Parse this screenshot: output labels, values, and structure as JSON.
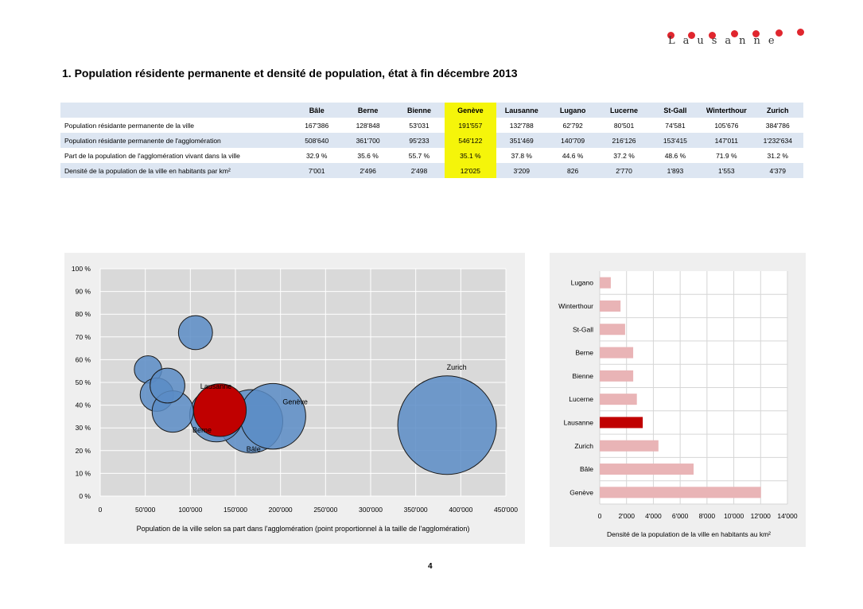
{
  "logo": {
    "text": "Lausanne"
  },
  "title": "1. Population résidente permanente et densité de population, état à fin décembre 2013",
  "table": {
    "columns": [
      "Bâle",
      "Berne",
      "Bienne",
      "Genève",
      "Lausanne",
      "Lugano",
      "Lucerne",
      "St-Gall",
      "Winterthour",
      "Zurich"
    ],
    "highlight_column": "Genève",
    "rows": [
      {
        "label": "Population résidante permanente de la ville",
        "values": [
          "167'386",
          "128'848",
          "53'031",
          "191'557",
          "132'788",
          "62'792",
          "80'501",
          "74'581",
          "105'676",
          "384'786"
        ]
      },
      {
        "label": "Population résidante permanente de l'agglomération",
        "values": [
          "508'640",
          "361'700",
          "95'233",
          "546'122",
          "351'469",
          "140'709",
          "216'126",
          "153'415",
          "147'011",
          "1'232'634"
        ]
      },
      {
        "label": "Part de la population de l'agglomération vivant dans la ville",
        "values": [
          "32.9 %",
          "35.6 %",
          "55.7 %",
          "35.1 %",
          "37.8 %",
          "44.6 %",
          "37.2 %",
          "48.6 %",
          "71.9 %",
          "31.2 %"
        ]
      },
      {
        "label": "Densité de la population de la ville en habitants par km²",
        "values": [
          "7'001",
          "2'496",
          "2'498",
          "12'025",
          "3'209",
          "826",
          "2'770",
          "1'893",
          "1'553",
          "4'379"
        ]
      }
    ]
  },
  "chart_data": [
    {
      "type": "scatter",
      "subtype": "bubble",
      "xlabel": "Population de la ville selon sa part dans l'agglomération (point proportionnel à la taille de l'agglomération)",
      "ylabel": "",
      "xlim": [
        0,
        450000
      ],
      "ylim": [
        0,
        100
      ],
      "x_ticks": [
        "0",
        "50'000",
        "100'000",
        "150'000",
        "200'000",
        "250'000",
        "300'000",
        "350'000",
        "400'000",
        "450'000"
      ],
      "y_ticks": [
        "0 %",
        "10 %",
        "20 %",
        "30 %",
        "40 %",
        "50 %",
        "60 %",
        "70 %",
        "80 %",
        "90 %",
        "100 %"
      ],
      "grid": true,
      "colors": {
        "default": "#5b8cc6",
        "highlight": "#c00000",
        "border": "#1a1a1a"
      },
      "points": [
        {
          "label": "Bâle",
          "x": 167386,
          "y": 32.9,
          "size": 508640,
          "highlight": false
        },
        {
          "label": "Berne",
          "x": 128848,
          "y": 35.6,
          "size": 361700,
          "highlight": false
        },
        {
          "label": "",
          "x": 53031,
          "y": 55.7,
          "size": 95233,
          "highlight": false
        },
        {
          "label": "Genève",
          "x": 191557,
          "y": 35.1,
          "size": 546122,
          "highlight": false
        },
        {
          "label": "Lausanne",
          "x": 132788,
          "y": 37.8,
          "size": 351469,
          "highlight": true
        },
        {
          "label": "",
          "x": 62792,
          "y": 44.6,
          "size": 140709,
          "highlight": false
        },
        {
          "label": "",
          "x": 80501,
          "y": 37.2,
          "size": 216126,
          "highlight": false
        },
        {
          "label": "",
          "x": 74581,
          "y": 48.6,
          "size": 153415,
          "highlight": false
        },
        {
          "label": "",
          "x": 105676,
          "y": 71.9,
          "size": 147011,
          "highlight": false
        },
        {
          "label": "Zurich",
          "x": 384786,
          "y": 31.2,
          "size": 1232634,
          "highlight": false
        }
      ]
    },
    {
      "type": "bar",
      "orientation": "horizontal",
      "xlabel": "Densité de la population de la ville en habitants au km²",
      "ylabel": "",
      "xlim": [
        0,
        14000
      ],
      "x_ticks": [
        "0",
        "2'000",
        "4'000",
        "6'000",
        "8'000",
        "10'000",
        "12'000",
        "14'000"
      ],
      "grid": true,
      "colors": {
        "default": "#e9b4b6",
        "highlight": "#c00000"
      },
      "highlight_category": "Lausanne",
      "categories": [
        "Lugano",
        "Winterthour",
        "St-Gall",
        "Berne",
        "Bienne",
        "Lucerne",
        "Lausanne",
        "Zurich",
        "Bâle",
        "Genève"
      ],
      "values": [
        826,
        1553,
        1893,
        2496,
        2498,
        2770,
        3209,
        4379,
        7001,
        12025
      ]
    }
  ],
  "page_number": "4"
}
